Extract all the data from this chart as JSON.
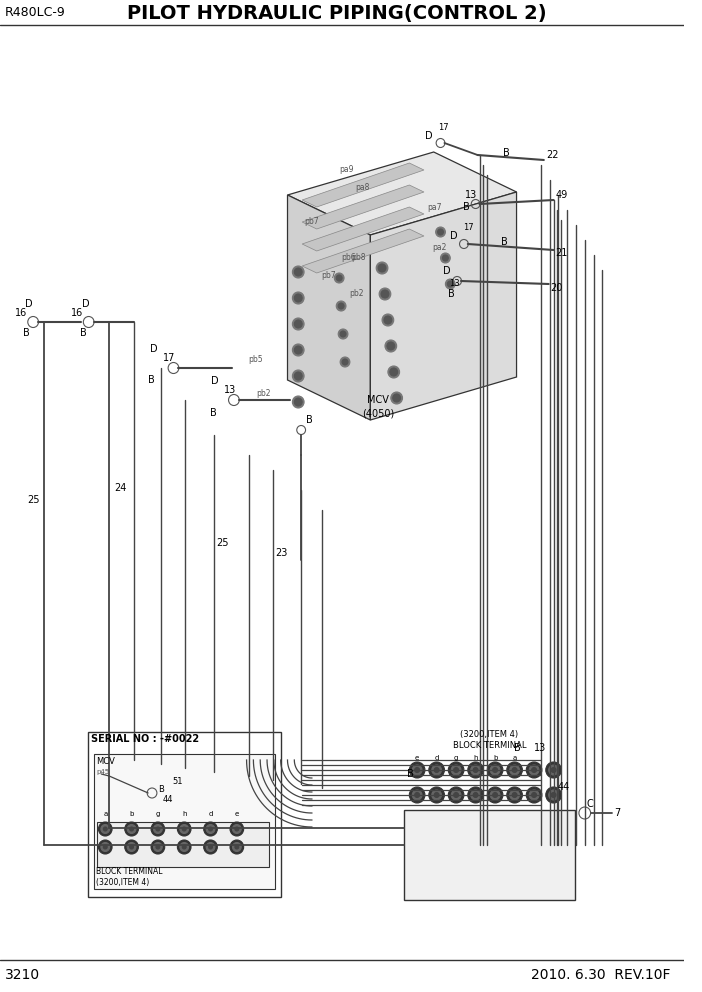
{
  "title": "PILOT HYDRAULIC PIPING(CONTROL 2)",
  "model": "R480LC-9",
  "page": "3210",
  "date": "2010. 6.30  REV.10F",
  "bg_color": "#ffffff",
  "line_color": "#333333",
  "hose_color": "#444444",
  "fitting_color": "#555555"
}
